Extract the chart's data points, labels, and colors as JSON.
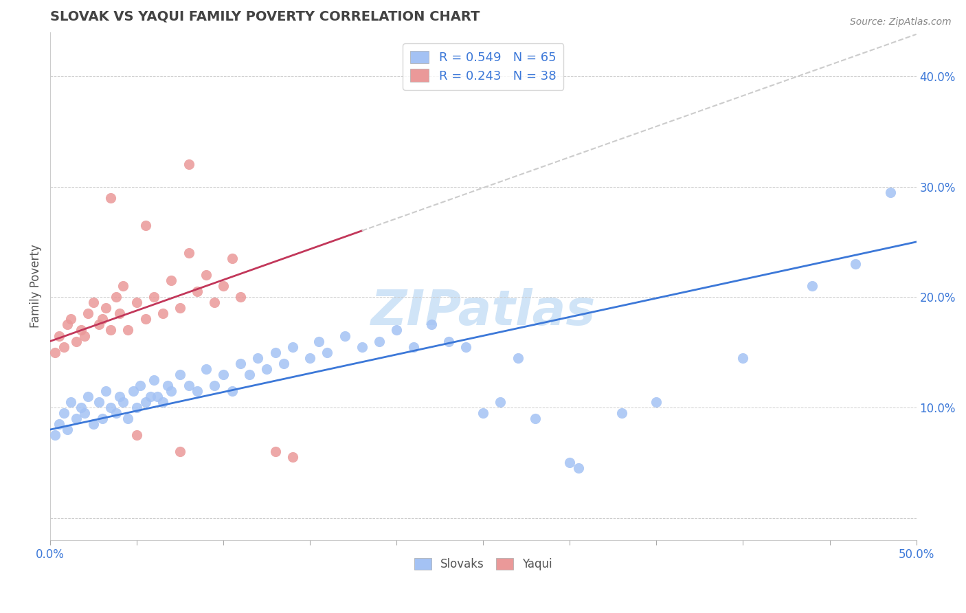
{
  "title": "SLOVAK VS YAQUI FAMILY POVERTY CORRELATION CHART",
  "source": "Source: ZipAtlas.com",
  "ylabel": "Family Poverty",
  "xlim": [
    0.0,
    50.0
  ],
  "ylim": [
    -2.0,
    44.0
  ],
  "slovak_R": 0.549,
  "slovak_N": 65,
  "yaqui_R": 0.243,
  "yaqui_N": 38,
  "slovak_color": "#a4c2f4",
  "yaqui_color": "#ea9999",
  "trend_slovak_color": "#3c78d8",
  "trend_yaqui_color": "#c2375a",
  "dashed_line_color": "#cccccc",
  "background_color": "#ffffff",
  "grid_color": "#cccccc",
  "title_color": "#434343",
  "axis_label_color": "#3c78d8",
  "legend_text_color": "#3c78d8",
  "watermark_color": "#d0e4f7",
  "slovak_points": [
    [
      0.3,
      7.5
    ],
    [
      0.5,
      8.5
    ],
    [
      0.8,
      9.5
    ],
    [
      1.0,
      8.0
    ],
    [
      1.2,
      10.5
    ],
    [
      1.5,
      9.0
    ],
    [
      1.8,
      10.0
    ],
    [
      2.0,
      9.5
    ],
    [
      2.2,
      11.0
    ],
    [
      2.5,
      8.5
    ],
    [
      2.8,
      10.5
    ],
    [
      3.0,
      9.0
    ],
    [
      3.2,
      11.5
    ],
    [
      3.5,
      10.0
    ],
    [
      3.8,
      9.5
    ],
    [
      4.0,
      11.0
    ],
    [
      4.2,
      10.5
    ],
    [
      4.5,
      9.0
    ],
    [
      4.8,
      11.5
    ],
    [
      5.0,
      10.0
    ],
    [
      5.2,
      12.0
    ],
    [
      5.5,
      10.5
    ],
    [
      5.8,
      11.0
    ],
    [
      6.0,
      12.5
    ],
    [
      6.2,
      11.0
    ],
    [
      6.5,
      10.5
    ],
    [
      6.8,
      12.0
    ],
    [
      7.0,
      11.5
    ],
    [
      7.5,
      13.0
    ],
    [
      8.0,
      12.0
    ],
    [
      8.5,
      11.5
    ],
    [
      9.0,
      13.5
    ],
    [
      9.5,
      12.0
    ],
    [
      10.0,
      13.0
    ],
    [
      10.5,
      11.5
    ],
    [
      11.0,
      14.0
    ],
    [
      11.5,
      13.0
    ],
    [
      12.0,
      14.5
    ],
    [
      12.5,
      13.5
    ],
    [
      13.0,
      15.0
    ],
    [
      13.5,
      14.0
    ],
    [
      14.0,
      15.5
    ],
    [
      15.0,
      14.5
    ],
    [
      15.5,
      16.0
    ],
    [
      16.0,
      15.0
    ],
    [
      17.0,
      16.5
    ],
    [
      18.0,
      15.5
    ],
    [
      19.0,
      16.0
    ],
    [
      20.0,
      17.0
    ],
    [
      21.0,
      15.5
    ],
    [
      22.0,
      17.5
    ],
    [
      23.0,
      16.0
    ],
    [
      24.0,
      15.5
    ],
    [
      25.0,
      9.5
    ],
    [
      26.0,
      10.5
    ],
    [
      27.0,
      14.5
    ],
    [
      28.0,
      9.0
    ],
    [
      30.0,
      5.0
    ],
    [
      30.5,
      4.5
    ],
    [
      33.0,
      9.5
    ],
    [
      35.0,
      10.5
    ],
    [
      40.0,
      14.5
    ],
    [
      44.0,
      21.0
    ],
    [
      46.5,
      23.0
    ],
    [
      48.5,
      29.5
    ]
  ],
  "yaqui_points": [
    [
      0.3,
      15.0
    ],
    [
      0.5,
      16.5
    ],
    [
      0.8,
      15.5
    ],
    [
      1.0,
      17.5
    ],
    [
      1.2,
      18.0
    ],
    [
      1.5,
      16.0
    ],
    [
      1.8,
      17.0
    ],
    [
      2.0,
      16.5
    ],
    [
      2.2,
      18.5
    ],
    [
      2.5,
      19.5
    ],
    [
      2.8,
      17.5
    ],
    [
      3.0,
      18.0
    ],
    [
      3.2,
      19.0
    ],
    [
      3.5,
      17.0
    ],
    [
      3.8,
      20.0
    ],
    [
      4.0,
      18.5
    ],
    [
      4.2,
      21.0
    ],
    [
      4.5,
      17.0
    ],
    [
      5.0,
      19.5
    ],
    [
      5.5,
      18.0
    ],
    [
      6.0,
      20.0
    ],
    [
      6.5,
      18.5
    ],
    [
      7.0,
      21.5
    ],
    [
      7.5,
      19.0
    ],
    [
      8.0,
      24.0
    ],
    [
      8.5,
      20.5
    ],
    [
      9.0,
      22.0
    ],
    [
      9.5,
      19.5
    ],
    [
      10.0,
      21.0
    ],
    [
      10.5,
      23.5
    ],
    [
      11.0,
      20.0
    ],
    [
      5.0,
      7.5
    ],
    [
      7.5,
      6.0
    ],
    [
      13.0,
      6.0
    ],
    [
      14.0,
      5.5
    ],
    [
      5.5,
      26.5
    ],
    [
      8.0,
      32.0
    ],
    [
      3.5,
      29.0
    ]
  ]
}
